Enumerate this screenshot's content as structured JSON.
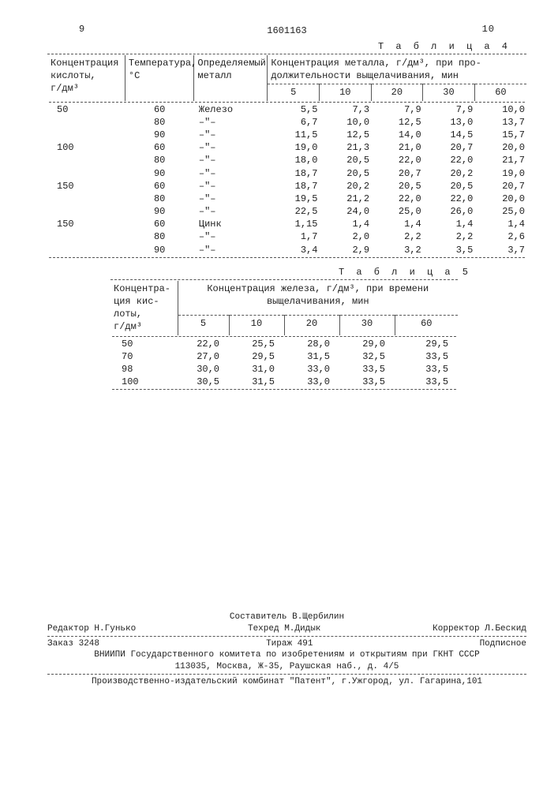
{
  "page_left": "9",
  "doc_id": "1601163",
  "page_right": "10",
  "table4": {
    "caption": "Т а б л и ц а 4",
    "head_acid": "Концентрация\nкислоты,\nг/дм³",
    "head_temp": "Температура,\n°С",
    "head_metal": "Определяемый\nметалл",
    "head_span": "Концентрация металла, г/дм³, при про-\nдолжительности выщелачивания, мин",
    "time_cols": [
      "5",
      "10",
      "20",
      "30",
      "60"
    ],
    "rows": [
      {
        "acid": "50",
        "temp": "60",
        "metal": "Железо",
        "v": [
          "5,5",
          "7,3",
          "7,9",
          "7,9",
          "10,0"
        ]
      },
      {
        "acid": "",
        "temp": "80",
        "metal": "–\"–",
        "v": [
          "6,7",
          "10,0",
          "12,5",
          "13,0",
          "13,7"
        ]
      },
      {
        "acid": "",
        "temp": "90",
        "metal": "–\"–",
        "v": [
          "11,5",
          "12,5",
          "14,0",
          "14,5",
          "15,7"
        ]
      },
      {
        "acid": "100",
        "temp": "60",
        "metal": "–\"–",
        "v": [
          "19,0",
          "21,3",
          "21,0",
          "20,7",
          "20,0"
        ]
      },
      {
        "acid": "",
        "temp": "80",
        "metal": "–\"–",
        "v": [
          "18,0",
          "20,5",
          "22,0",
          "22,0",
          "21,7"
        ]
      },
      {
        "acid": "",
        "temp": "90",
        "metal": "–\"–",
        "v": [
          "18,7",
          "20,5",
          "20,7",
          "20,2",
          "19,0"
        ]
      },
      {
        "acid": "150",
        "temp": "60",
        "metal": "–\"–",
        "v": [
          "18,7",
          "20,2",
          "20,5",
          "20,5",
          "20,7"
        ]
      },
      {
        "acid": "",
        "temp": "80",
        "metal": "–\"–",
        "v": [
          "19,5",
          "21,2",
          "22,0",
          "22,0",
          "20,0"
        ]
      },
      {
        "acid": "",
        "temp": "90",
        "metal": "–\"–",
        "v": [
          "22,5",
          "24,0",
          "25,0",
          "26,0",
          "25,0"
        ]
      },
      {
        "acid": "150",
        "temp": "60",
        "metal": "Цинк",
        "v": [
          "1,15",
          "1,4",
          "1,4",
          "1,4",
          "1,4"
        ]
      },
      {
        "acid": "",
        "temp": "80",
        "metal": "–\"–",
        "v": [
          "1,7",
          "2,0",
          "2,2",
          "2,2",
          "2,6"
        ]
      },
      {
        "acid": "",
        "temp": "90",
        "metal": "–\"–",
        "v": [
          "3,4",
          "2,9",
          "3,2",
          "3,5",
          "3,7"
        ]
      }
    ]
  },
  "table5": {
    "caption": "Т а б л и ц а 5",
    "head_acid": "Концентра-\nция кис-\nлоты,\nг/дм³",
    "head_span": "Концентрация железа, г/дм³, при времени\nвыщелачивания, мин",
    "time_cols": [
      "5",
      "10",
      "20",
      "30",
      "60"
    ],
    "rows": [
      {
        "acid": "50",
        "v": [
          "22,0",
          "25,5",
          "28,0",
          "29,0",
          "29,5"
        ]
      },
      {
        "acid": "70",
        "v": [
          "27,0",
          "29,5",
          "31,5",
          "32,5",
          "33,5"
        ]
      },
      {
        "acid": "98",
        "v": [
          "30,0",
          "31,0",
          "33,0",
          "33,5",
          "33,5"
        ]
      },
      {
        "acid": "100",
        "v": [
          "30,5",
          "31,5",
          "33,0",
          "33,5",
          "33,5"
        ]
      }
    ]
  },
  "footer": {
    "compiler": "Составитель В.Щербилин",
    "editor": "Редактор Н.Гунько",
    "tehred": "Техред М.Дидык",
    "corrector": "Корректор Л.Бескид",
    "order": "Заказ 3248",
    "tiraz": "Тираж 491",
    "podpis": "Подписное",
    "org": "ВНИИПИ Государственного комитета по изобретениям и открытиям при ГКНТ СССР",
    "org_addr": "113035, Москва, Ж-35, Раушская наб., д. 4/5",
    "printer": "Производственно-издательский комбинат \"Патент\", г.Ужгород, ул. Гагарина,101"
  }
}
